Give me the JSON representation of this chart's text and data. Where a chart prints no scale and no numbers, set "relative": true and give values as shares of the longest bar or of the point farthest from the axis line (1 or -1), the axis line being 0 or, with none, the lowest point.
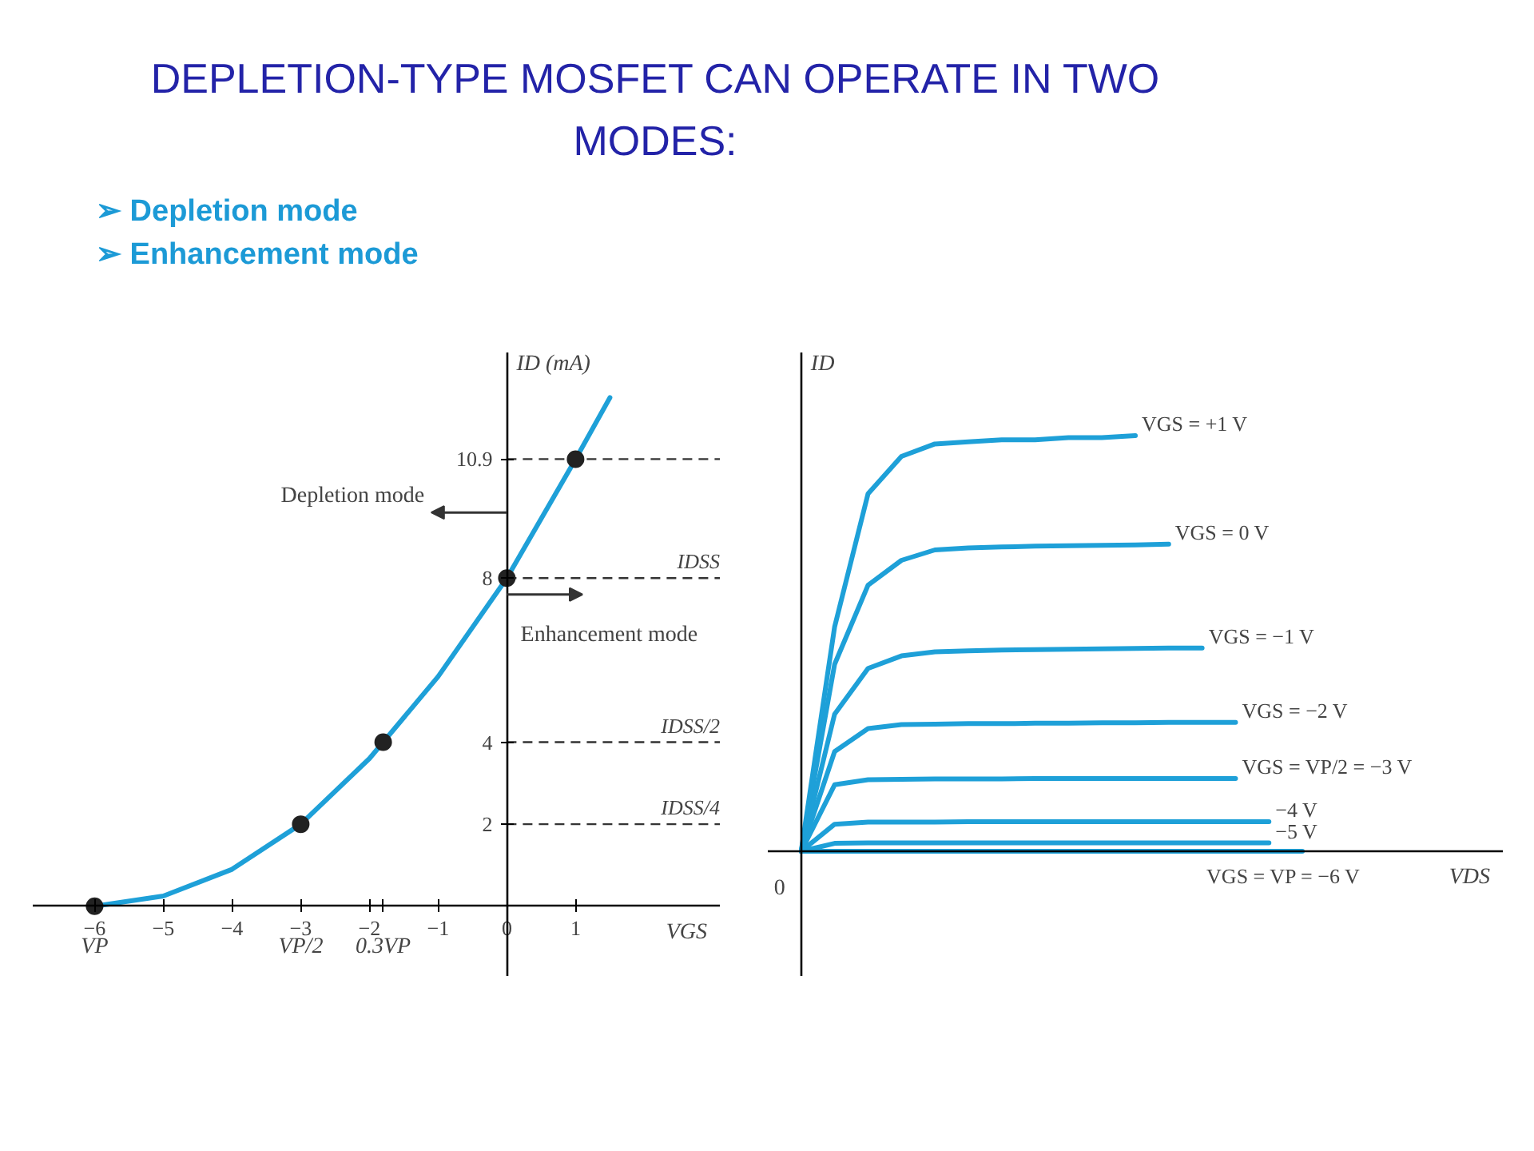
{
  "chart_data": [
    {
      "type": "line",
      "title": "DEPLETION-TYPE MOSFET CAN OPERATE IN TWO MODES:",
      "subtitle": "➢ Depletion mode\n➢ Enhancement mode",
      "xlabel": "VGS",
      "ylabel": "ID (mA)",
      "xlim": [
        -6.9,
        3.1
      ],
      "ylim": [
        -1.7,
        13.5
      ],
      "xticks": [
        {
          "value": -6,
          "label": "−6"
        },
        {
          "value": -5,
          "label": "−5"
        },
        {
          "value": -4,
          "label": "−4"
        },
        {
          "value": -3,
          "label": "−3"
        },
        {
          "value": -2,
          "label": "−2"
        },
        {
          "value": -1.8,
          "label": null
        },
        {
          "value": -1,
          "label": "−1"
        },
        0,
        1
      ],
      "yticks": [
        2,
        4,
        8,
        10.9
      ],
      "series": [
        {
          "type": "line",
          "color": "#1ea0d8",
          "x": [
            -6,
            -5,
            -4,
            -3,
            -2,
            -1,
            0,
            1,
            1.5
          ],
          "values": [
            0,
            0.25,
            0.9,
            2,
            3.6,
            5.6,
            8,
            10.9,
            12.4
          ]
        },
        {
          "type": "scatter",
          "color": "#222222",
          "marker": "circle",
          "x": [
            -6,
            -3,
            -1.8,
            0,
            1
          ],
          "values": [
            0,
            2,
            4,
            8,
            10.9
          ]
        }
      ],
      "ref_lines": [
        {
          "axis": "y",
          "value": 10.9,
          "line_style": "dashed"
        },
        {
          "axis": "y",
          "value": 8,
          "label": "IDSS",
          "line_style": "dashed"
        },
        {
          "axis": "y",
          "value": 4,
          "label": "IDSS/2",
          "line_style": "dashed"
        },
        {
          "axis": "y",
          "value": 2,
          "label": "IDSS/4",
          "line_style": "dashed"
        }
      ],
      "annotations": [
        "Depletion mode",
        "Enhancement mode",
        "VP",
        "VP/2",
        "0.3VP"
      ]
    },
    {
      "type": "line",
      "relative": true,
      "xlabel": "VDS",
      "ylabel": "ID",
      "categories": [
        null,
        null,
        null,
        null,
        null,
        null,
        null,
        null,
        null,
        null,
        null,
        null,
        null,
        null,
        null,
        null
      ],
      "series": [
        {
          "name": "VGS = +1 V",
          "color": "#1ea0d8",
          "values": [
            0,
            0.54,
            0.86,
            0.95,
            0.98,
            0.985,
            0.99,
            0.99,
            0.995,
            0.995,
            1,
            null,
            null,
            null,
            null,
            null
          ]
        },
        {
          "name": "VGS = 0 V",
          "color": "#1ea0d8",
          "values": [
            0,
            0.45,
            0.64,
            0.7,
            0.725,
            0.73,
            0.732,
            0.734,
            0.735,
            0.736,
            0.737,
            0.739,
            null,
            null,
            null,
            null
          ]
        },
        {
          "name": "VGS = −1 V",
          "color": "#1ea0d8",
          "values": [
            0,
            0.33,
            0.44,
            0.47,
            0.48,
            0.482,
            0.484,
            0.485,
            0.486,
            0.487,
            0.488,
            0.489,
            0.489,
            null,
            null,
            null
          ]
        },
        {
          "name": "VGS = −2  V",
          "color": "#1ea0d8",
          "values": [
            0,
            0.24,
            0.295,
            0.305,
            0.306,
            0.307,
            0.307,
            0.308,
            0.308,
            0.309,
            0.309,
            0.31,
            0.31,
            0.31,
            null,
            null
          ]
        },
        {
          "name": "VGS = VP/2 = −3 V",
          "color": "#1ea0d8",
          "values": [
            0,
            0.16,
            0.172,
            0.173,
            0.174,
            0.174,
            0.174,
            0.175,
            0.175,
            0.175,
            0.175,
            0.175,
            0.175,
            0.175,
            null,
            null
          ]
        },
        {
          "name": "−4 V",
          "color": "#1ea0d8",
          "values": [
            0,
            0.065,
            0.07,
            0.07,
            0.07,
            0.071,
            0.071,
            0.071,
            0.071,
            0.071,
            0.071,
            0.071,
            0.071,
            0.071,
            0.071,
            null
          ]
        },
        {
          "name": "−5 V",
          "color": "#1ea0d8",
          "values": [
            0,
            0.019,
            0.02,
            0.02,
            0.02,
            0.02,
            0.02,
            0.02,
            0.02,
            0.02,
            0.02,
            0.02,
            0.02,
            0.02,
            0.02,
            null
          ]
        },
        {
          "name": "VGS = VP = −6 V",
          "color": "#1ea0d8",
          "values": [
            0,
            0,
            0,
            0,
            0,
            0,
            0,
            0,
            0,
            0,
            0,
            0,
            0,
            0,
            0,
            0
          ]
        }
      ],
      "annotations": [
        "0"
      ]
    }
  ]
}
